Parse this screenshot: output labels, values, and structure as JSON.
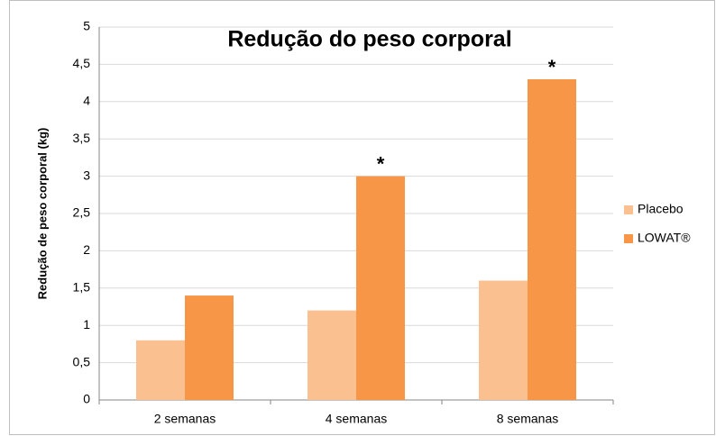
{
  "chart_data": {
    "type": "bar",
    "title": "Redução do peso corporal",
    "y_label": "Redução de peso corporal (kg)",
    "categories": [
      "2 semanas",
      "4 semanas",
      "8 semanas"
    ],
    "series": [
      {
        "name": "Placebo",
        "color": "#fac090",
        "values": [
          0.8,
          1.2,
          1.6
        ]
      },
      {
        "name": "LOWAT®",
        "color": "#f79646",
        "values": [
          1.4,
          3.0,
          4.3
        ]
      }
    ],
    "annotations": [
      {
        "text": "*",
        "category": "4 semanas",
        "series": "LOWAT®"
      },
      {
        "text": "*",
        "category": "8 semanas",
        "series": "LOWAT®"
      }
    ],
    "ylim": [
      0,
      5
    ],
    "yticks": [
      0,
      {
        "value": 0.5,
        "label": "0,5"
      },
      1,
      {
        "value": 1.5,
        "label": "1,5"
      },
      2,
      {
        "value": 2.5,
        "label": "2,5"
      },
      3,
      {
        "value": 3.5,
        "label": "3,5"
      },
      4,
      {
        "value": 4.5,
        "label": "4,5"
      },
      5
    ],
    "grid": true,
    "legend": "right"
  }
}
